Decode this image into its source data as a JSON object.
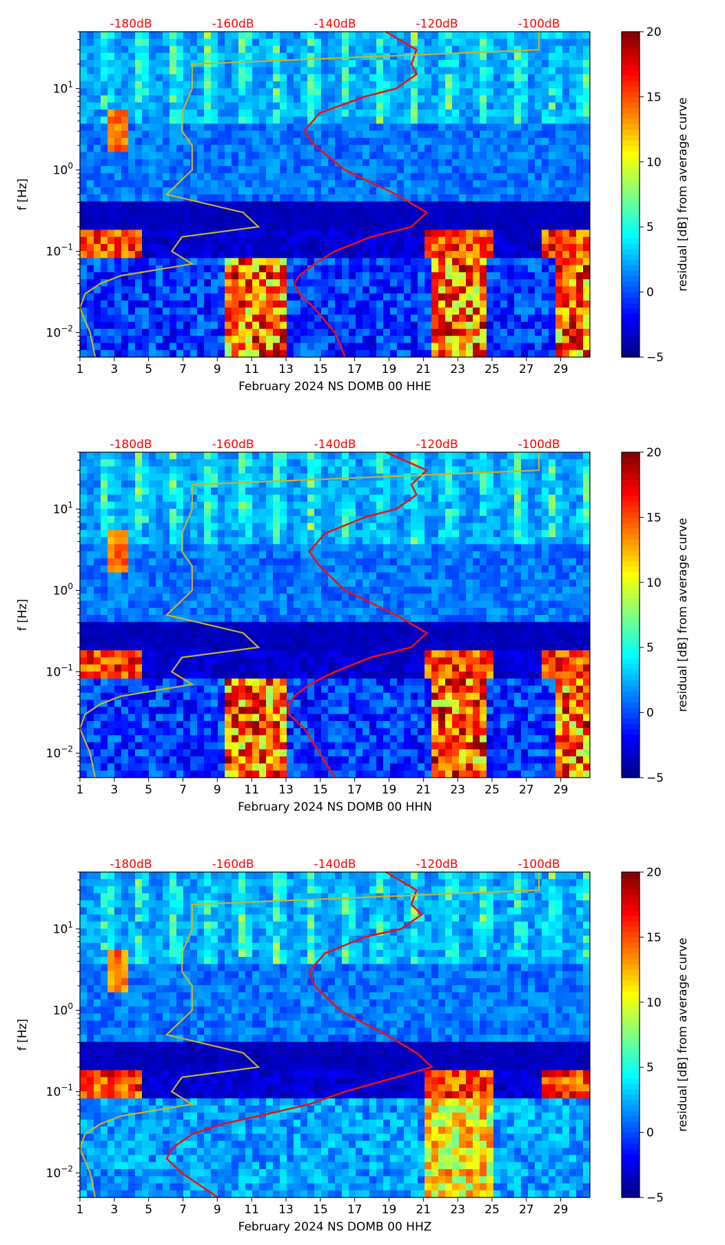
{
  "chart_data": [
    {
      "type": "heatmap",
      "xlabel": "February 2024 NS DOMB 00 HHE",
      "ylabel": "f [Hz]",
      "x_ticks": [
        "1",
        "3",
        "5",
        "7",
        "9",
        "11",
        "13",
        "15",
        "17",
        "19",
        "21",
        "23",
        "25",
        "27",
        "29"
      ],
      "y_ticks": [
        {
          "exp": "-2"
        },
        {
          "exp": "-1"
        },
        {
          "exp": "0"
        },
        {
          "exp": "1"
        }
      ],
      "top_axis_labels": [
        "-180dB",
        "-160dB",
        "-140dB",
        "-120dB",
        "-100dB"
      ],
      "colorbar": {
        "label": "residual [dB] from average curve",
        "ticks": [
          "20",
          "15",
          "10",
          "5",
          "0",
          "−5"
        ],
        "range": [
          -5,
          20
        ]
      },
      "series": [
        {
          "name": "average PSD curve (red)",
          "freq": [
            0.005,
            0.01,
            0.02,
            0.03,
            0.04,
            0.05,
            0.07,
            0.1,
            0.15,
            0.2,
            0.3,
            0.5,
            1,
            2,
            3,
            5,
            8,
            10,
            15,
            20,
            30,
            50
          ],
          "db": [
            -138,
            -140,
            -144,
            -147,
            -148,
            -147,
            -144,
            -140,
            -133,
            -125,
            -122,
            -128,
            -138,
            -144,
            -146,
            -143,
            -134,
            -128,
            -124,
            -125,
            -124,
            -130
          ]
        },
        {
          "name": "noise model (yellow)",
          "freq": [
            0.005,
            0.01,
            0.02,
            0.03,
            0.04,
            0.05,
            0.07,
            0.1,
            0.15,
            0.2,
            0.3,
            0.5,
            1,
            2,
            3,
            5,
            10,
            20,
            30,
            50
          ],
          "db": [
            -187,
            -188,
            -190,
            -189,
            -186,
            -182,
            -168,
            -172,
            -170,
            -155,
            -158,
            -173,
            -168,
            -168,
            -170,
            -170,
            -168,
            -168,
            -100,
            -100
          ]
        }
      ]
    },
    {
      "type": "heatmap",
      "xlabel": "February 2024 NS DOMB 00 HHN",
      "ylabel": "f [Hz]",
      "x_ticks": [
        "1",
        "3",
        "5",
        "7",
        "9",
        "11",
        "13",
        "15",
        "17",
        "19",
        "21",
        "23",
        "25",
        "27",
        "29"
      ],
      "y_ticks": [
        {
          "exp": "-2"
        },
        {
          "exp": "-1"
        },
        {
          "exp": "0"
        },
        {
          "exp": "1"
        }
      ],
      "top_axis_labels": [
        "-180dB",
        "-160dB",
        "-140dB",
        "-120dB",
        "-100dB"
      ],
      "colorbar": {
        "label": "residual [dB] from average curve",
        "ticks": [
          "20",
          "15",
          "10",
          "5",
          "0",
          "−5"
        ],
        "range": [
          -5,
          20
        ]
      },
      "series": [
        {
          "name": "average PSD curve (red)",
          "freq": [
            0.005,
            0.01,
            0.02,
            0.03,
            0.04,
            0.05,
            0.07,
            0.1,
            0.15,
            0.2,
            0.3,
            0.5,
            1,
            2,
            3,
            5,
            8,
            10,
            15,
            20,
            30,
            50
          ],
          "db": [
            -140,
            -143,
            -146,
            -149,
            -149,
            -148,
            -145,
            -140,
            -133,
            -125,
            -122,
            -128,
            -138,
            -143,
            -145,
            -142,
            -134,
            -128,
            -124,
            -125,
            -122,
            -130
          ]
        },
        {
          "name": "noise model (yellow)",
          "freq": [
            0.005,
            0.01,
            0.02,
            0.03,
            0.04,
            0.05,
            0.07,
            0.1,
            0.15,
            0.2,
            0.3,
            0.5,
            1,
            2,
            3,
            5,
            10,
            20,
            30,
            50
          ],
          "db": [
            -187,
            -188,
            -190,
            -189,
            -186,
            -182,
            -168,
            -172,
            -170,
            -155,
            -158,
            -173,
            -168,
            -168,
            -170,
            -170,
            -168,
            -168,
            -100,
            -100
          ]
        }
      ]
    },
    {
      "type": "heatmap",
      "xlabel": "February 2024 NS DOMB 00 HHZ",
      "ylabel": "f [Hz]",
      "x_ticks": [
        "1",
        "3",
        "5",
        "7",
        "9",
        "11",
        "13",
        "15",
        "17",
        "19",
        "21",
        "23",
        "25",
        "27",
        "29"
      ],
      "y_ticks": [
        {
          "exp": "-2"
        },
        {
          "exp": "-1"
        },
        {
          "exp": "0"
        },
        {
          "exp": "1"
        }
      ],
      "top_axis_labels": [
        "-180dB",
        "-160dB",
        "-140dB",
        "-120dB",
        "-100dB"
      ],
      "colorbar": {
        "label": "residual [dB] from average curve",
        "ticks": [
          "20",
          "15",
          "10",
          "5",
          "0",
          "−5"
        ],
        "range": [
          -5,
          20
        ]
      },
      "series": [
        {
          "name": "average PSD curve (red)",
          "freq": [
            0.005,
            0.01,
            0.015,
            0.02,
            0.03,
            0.04,
            0.05,
            0.07,
            0.1,
            0.15,
            0.2,
            0.3,
            0.5,
            1,
            2,
            3,
            5,
            8,
            10,
            15,
            20,
            30,
            50
          ],
          "db": [
            -163,
            -170,
            -173,
            -172,
            -168,
            -162,
            -155,
            -145,
            -138,
            -128,
            -121,
            -124,
            -130,
            -139,
            -144,
            -145,
            -142,
            -134,
            -127,
            -123,
            -125,
            -124,
            -130
          ]
        },
        {
          "name": "noise model (yellow)",
          "freq": [
            0.005,
            0.01,
            0.02,
            0.03,
            0.04,
            0.05,
            0.07,
            0.1,
            0.15,
            0.2,
            0.3,
            0.5,
            1,
            2,
            3,
            5,
            10,
            20,
            30,
            50
          ],
          "db": [
            -187,
            -188,
            -190,
            -189,
            -186,
            -182,
            -168,
            -172,
            -170,
            -155,
            -158,
            -173,
            -168,
            -168,
            -170,
            -170,
            -168,
            -168,
            -100,
            -100
          ]
        }
      ]
    }
  ]
}
